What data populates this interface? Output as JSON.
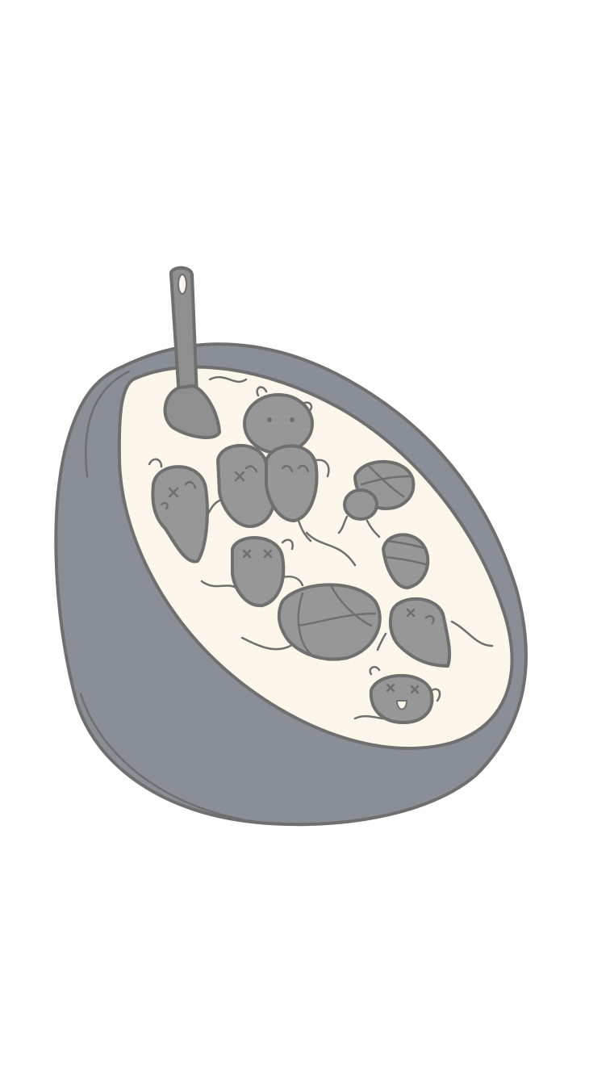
{
  "scene": {
    "subject_icon": "bowl-of-bug-cereal-icon",
    "colors": {
      "background": "#ffffff",
      "bowl": "#8a8e96",
      "bowl_outline": "#6a6d72",
      "milk": "#fdf6ea",
      "bug": "#979797",
      "bug_outline": "#6f6f6f",
      "spoon": "#8f8f8f"
    }
  }
}
